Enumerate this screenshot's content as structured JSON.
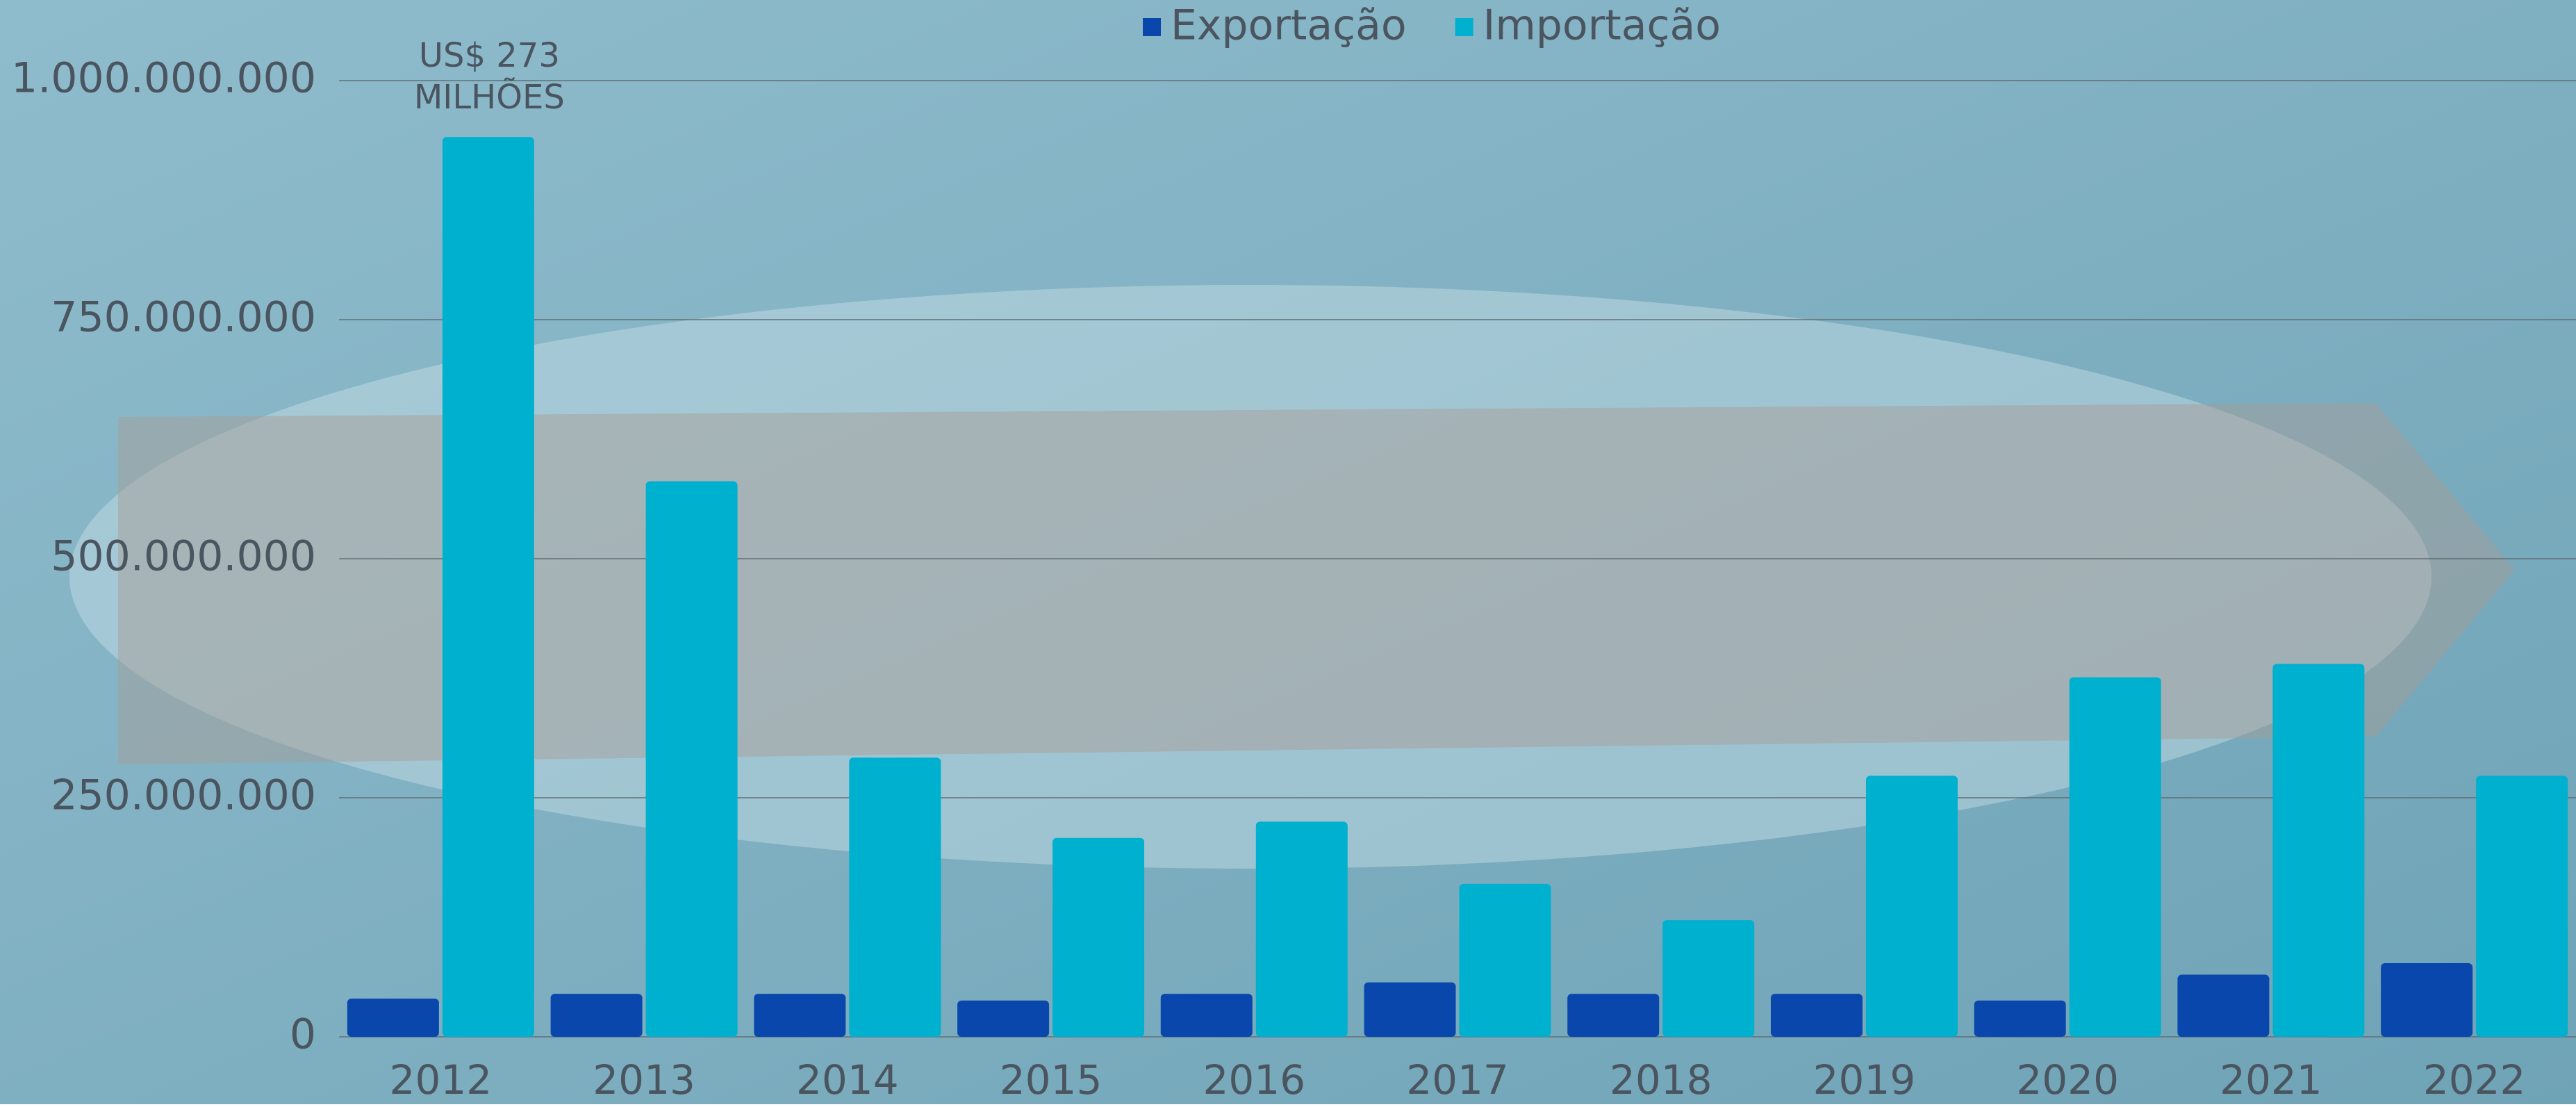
{
  "chart_data": {
    "type": "bar",
    "annotation": [
      "US$ 273",
      "MILHÕES"
    ],
    "categories": [
      "2012",
      "2013",
      "2014",
      "2015",
      "2016",
      "2017",
      "2018",
      "2019",
      "2020",
      "2021",
      "2022"
    ],
    "series": [
      {
        "name": "Exportação",
        "color": "#0a47ad",
        "values": [
          40000000,
          45000000,
          45000000,
          38000000,
          45000000,
          57000000,
          45000000,
          45000000,
          38000000,
          65000000,
          77000000
        ]
      },
      {
        "name": "Importação",
        "color": "#00b0cf",
        "values": [
          941000000,
          581000000,
          292000000,
          208000000,
          225000000,
          160000000,
          122000000,
          273000000,
          376000000,
          390000000,
          273000000
        ]
      }
    ],
    "ylim": [
      0,
      1000000000
    ],
    "yticks": [
      0,
      {
        "value": 250000000,
        "label": "250.000.000"
      },
      {
        "value": 500000000,
        "label": "500.000.000"
      },
      {
        "value": 750000000,
        "label": "750.000.000"
      },
      {
        "value": 1000000000,
        "label": "1.000.000.000"
      }
    ],
    "grid": true,
    "legend": "top"
  }
}
